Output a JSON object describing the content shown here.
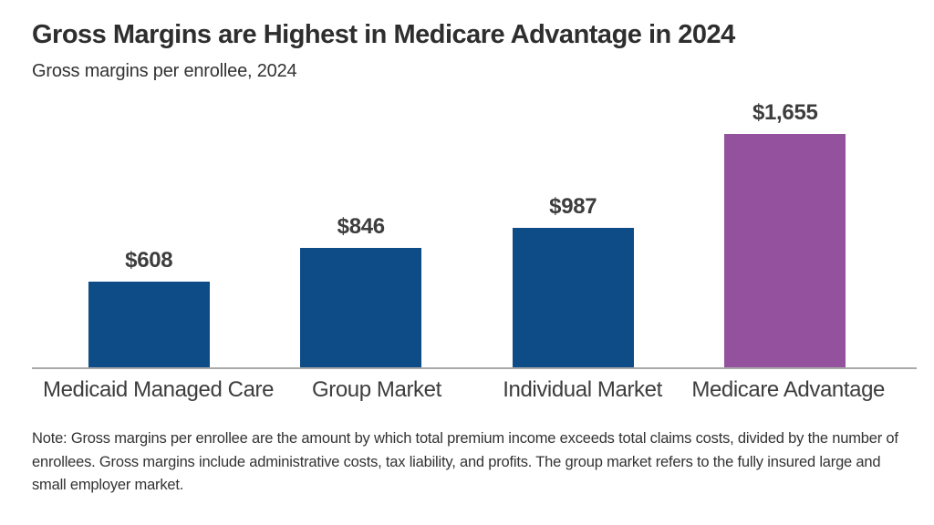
{
  "title": "Gross Margins are Highest in Medicare Advantage in 2024",
  "subtitle": "Gross margins per enrollee, 2024",
  "note": "Note: Gross margins per enrollee are the amount by which total premium income exceeds total claims costs, divided by the number of enrollees. Gross margins include administrative costs, tax liability, and profits. The group market refers to the fully insured large and small employer market.",
  "colors": {
    "bar_default": "#0d4c87",
    "bar_highlight": "#94519e",
    "axis_line": "#a9a9a9",
    "title_text": "#2e2e2e",
    "label_text": "#3d3d3d"
  },
  "chart_data": {
    "type": "bar",
    "categories": [
      "Medicaid Managed Care",
      "Group Market",
      "Individual Market",
      "Medicare Advantage"
    ],
    "values": [
      608,
      846,
      987,
      1655
    ],
    "value_labels": [
      "$608",
      "$846",
      "$987",
      "$1,655"
    ],
    "highlight_index": 3,
    "title": "Gross Margins are Highest in Medicare Advantage in 2024",
    "subtitle": "Gross margins per enrollee, 2024",
    "xlabel": "",
    "ylabel": "",
    "ylim": [
      0,
      1700
    ],
    "grid": false,
    "legend": false,
    "orientation": "vertical"
  }
}
